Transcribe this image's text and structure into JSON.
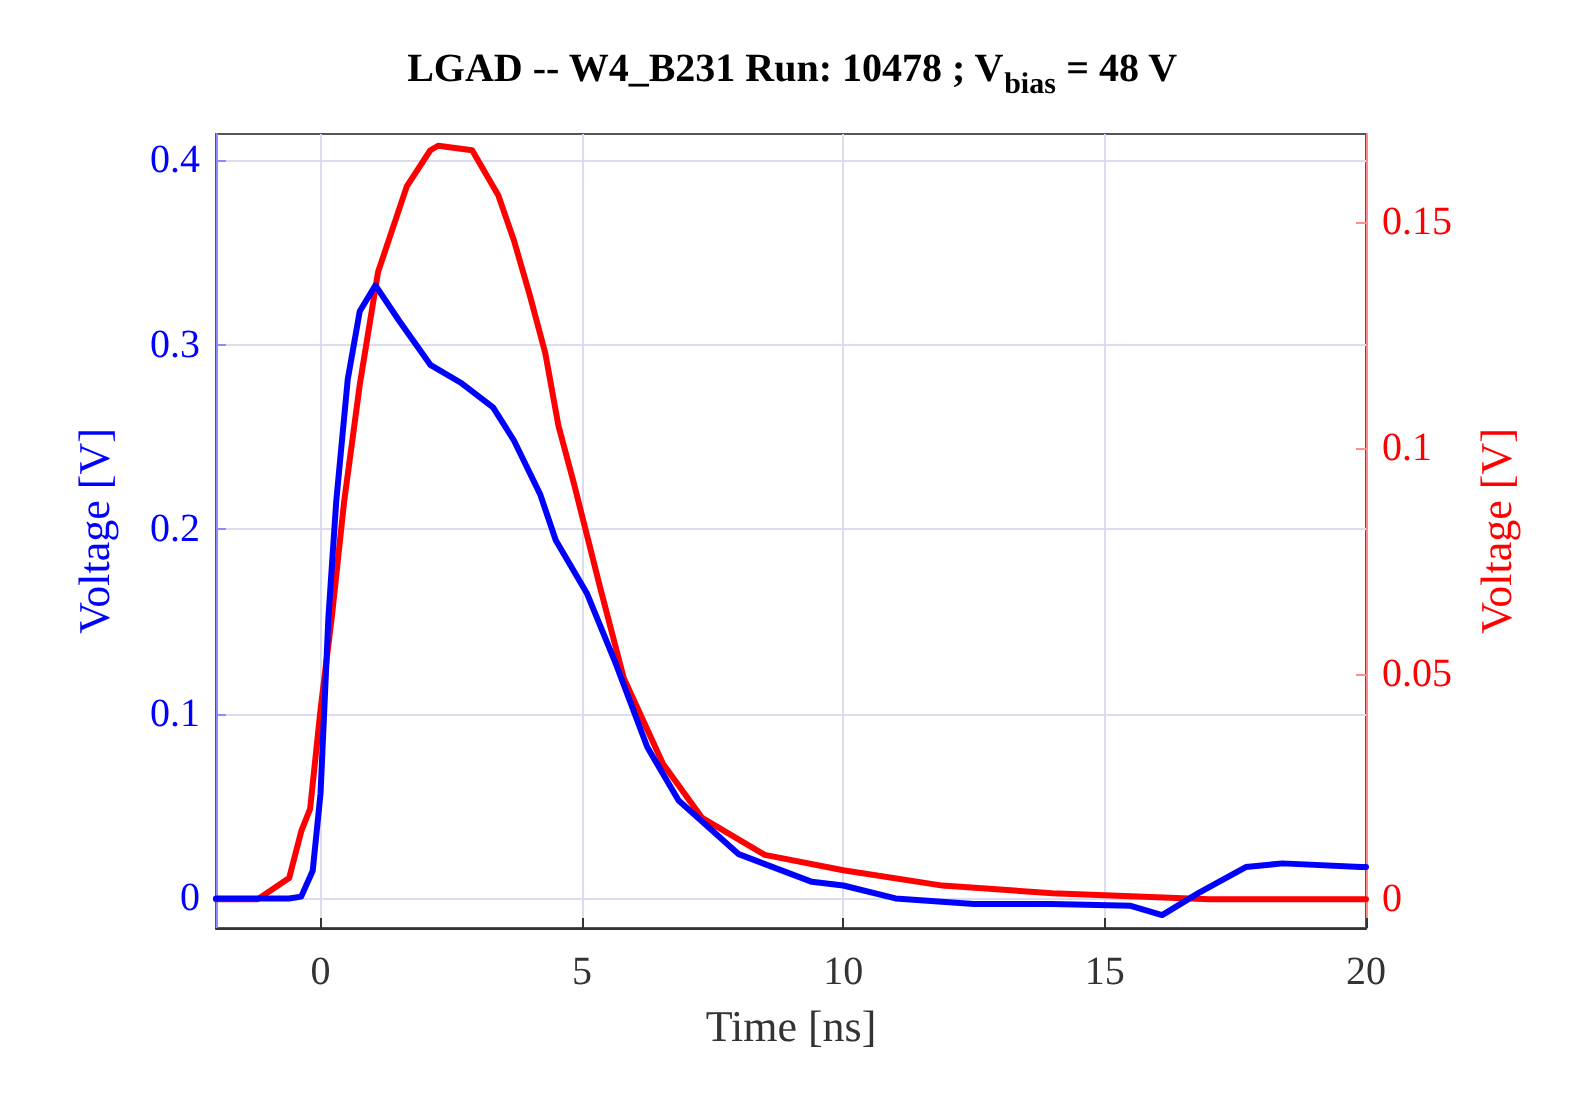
{
  "chart_data": {
    "type": "line",
    "title": "LGAD -- W4_B231 Run: 10478 ; V$_{bias}$ = 48 V",
    "xlabel": "Time [ns]",
    "ylabel": "Voltage [V]",
    "y2label": "Voltage [V]",
    "xlim": [
      -2,
      20
    ],
    "xticks": [
      0,
      5,
      10,
      15,
      20
    ],
    "ylim": [
      -0.016,
      0.414
    ],
    "yticks": [
      0,
      0.1,
      0.2,
      0.3,
      0.4
    ],
    "y2lim": [
      -0.0064,
      0.1696
    ],
    "y2ticks": [
      0,
      0.05,
      0.1,
      0.15
    ],
    "grid": true,
    "marker": "none",
    "line_style": "solid",
    "series": [
      {
        "color": "#0000ff",
        "x": [
          -2,
          -0.6,
          -0.37,
          -0.15,
          0,
          0.15,
          0.3,
          0.52,
          0.75,
          1.05,
          1.5,
          2.1,
          2.7,
          3.3,
          3.7,
          4.2,
          4.5,
          5.1,
          5.65,
          6.25,
          6.85,
          8.0,
          9.4,
          10.0,
          11,
          12.5,
          14,
          15.5,
          16.1,
          16.8,
          17.7,
          18.4,
          19.9,
          20
        ],
        "values": [
          0,
          0,
          0.001,
          0.015,
          0.057,
          0.152,
          0.215,
          0.281,
          0.318,
          0.332,
          0.313,
          0.289,
          0.279,
          0.266,
          0.248,
          0.219,
          0.194,
          0.165,
          0.127,
          0.082,
          0.053,
          0.024,
          0.009,
          0.007,
          0,
          -0.003,
          -0.003,
          -0.004,
          -0.009,
          0.003,
          0.017,
          0.019,
          0.017,
          0.017
        ]
      },
      {
        "color": "#ff0000",
        "axis": "y2",
        "x": [
          -2,
          -1.2,
          -0.6,
          -0.37,
          -0.2,
          0,
          0.22,
          0.45,
          0.75,
          1.1,
          1.65,
          2.1,
          2.25,
          2.9,
          3.4,
          3.7,
          4.0,
          4.3,
          4.55,
          4.85,
          5.35,
          5.8,
          6.55,
          7.3,
          8.5,
          10,
          11.9,
          14,
          17,
          20
        ],
        "values": [
          0,
          0,
          0.0047,
          0.015,
          0.02,
          0.042,
          0.063,
          0.088,
          0.114,
          0.139,
          0.158,
          0.166,
          0.167,
          0.166,
          0.156,
          0.146,
          0.134,
          0.121,
          0.105,
          0.092,
          0.069,
          0.049,
          0.03,
          0.018,
          0.0098,
          0.0064,
          0.003,
          0.0013,
          0,
          0
        ]
      }
    ]
  }
}
